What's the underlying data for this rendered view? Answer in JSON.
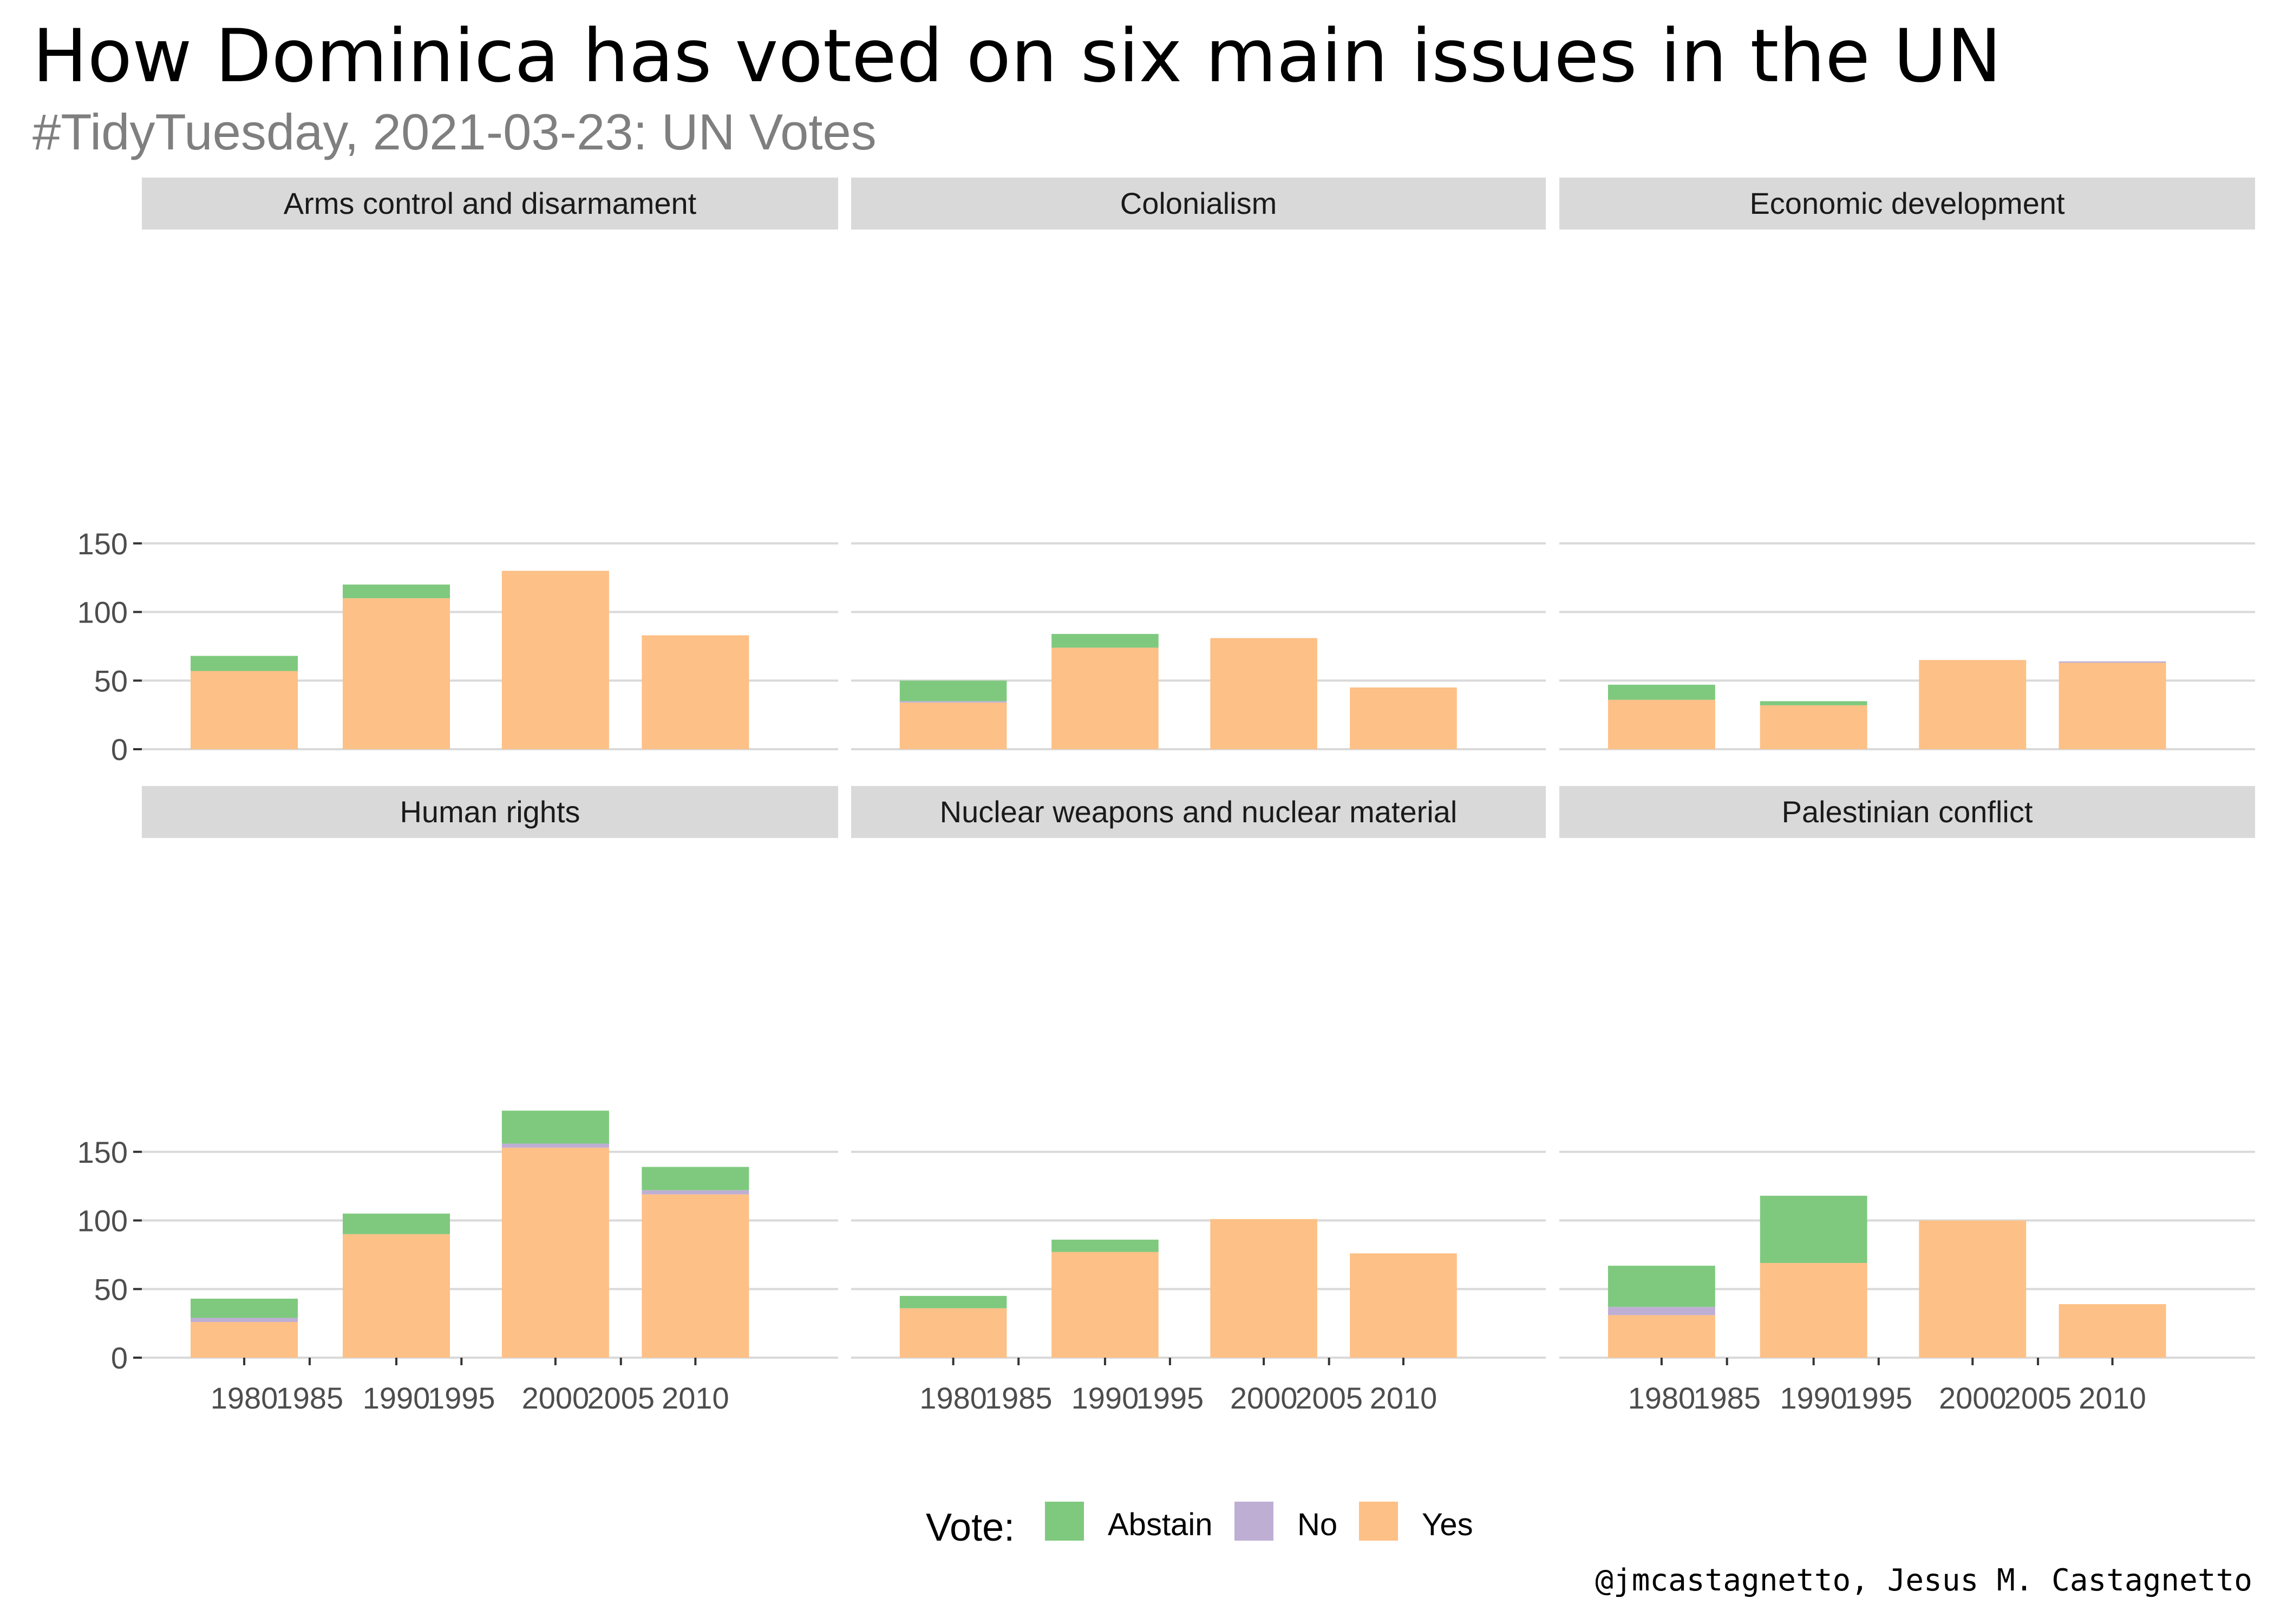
{
  "title": "How Dominica has voted on six main issues in the UN",
  "subtitle": "#TidyTuesday, 2021-03-23: UN Votes",
  "caption": "@jmcastagnetto, Jesus M. Castagnetto",
  "legend": {
    "title": "Vote:",
    "items": [
      {
        "label": "Abstain",
        "color": "#7fc97f"
      },
      {
        "label": "No",
        "color": "#beaed4"
      },
      {
        "label": "Yes",
        "color": "#fdc086"
      }
    ]
  },
  "chart_data": {
    "type": "bar",
    "stacked": true,
    "facets": [
      {
        "name": "Arms control and disarmament",
        "data": {
          "1980": {
            "Yes": 57,
            "No": 0,
            "Abstain": 11
          },
          "1990": {
            "Yes": 110,
            "No": 0,
            "Abstain": 10
          },
          "2000": {
            "Yes": 130,
            "No": 0,
            "Abstain": 0
          },
          "2010": {
            "Yes": 83,
            "No": 0,
            "Abstain": 0
          }
        }
      },
      {
        "name": "Colonialism",
        "data": {
          "1980": {
            "Yes": 34,
            "No": 1,
            "Abstain": 15
          },
          "1990": {
            "Yes": 74,
            "No": 0,
            "Abstain": 10
          },
          "2000": {
            "Yes": 81,
            "No": 0,
            "Abstain": 0
          },
          "2010": {
            "Yes": 45,
            "No": 0,
            "Abstain": 0
          }
        }
      },
      {
        "name": "Economic development",
        "data": {
          "1980": {
            "Yes": 36,
            "No": 0,
            "Abstain": 11
          },
          "1990": {
            "Yes": 32,
            "No": 0,
            "Abstain": 3
          },
          "2000": {
            "Yes": 65,
            "No": 0,
            "Abstain": 0
          },
          "2010": {
            "Yes": 63,
            "No": 1,
            "Abstain": 0
          }
        }
      },
      {
        "name": "Human rights",
        "data": {
          "1980": {
            "Yes": 26,
            "No": 3,
            "Abstain": 14
          },
          "1990": {
            "Yes": 90,
            "No": 0,
            "Abstain": 15
          },
          "2000": {
            "Yes": 153,
            "No": 3,
            "Abstain": 24
          },
          "2010": {
            "Yes": 119,
            "No": 3,
            "Abstain": 17
          }
        }
      },
      {
        "name": "Nuclear weapons and nuclear material",
        "data": {
          "1980": {
            "Yes": 36,
            "No": 0,
            "Abstain": 9
          },
          "1990": {
            "Yes": 77,
            "No": 0,
            "Abstain": 9
          },
          "2000": {
            "Yes": 101,
            "No": 0,
            "Abstain": 0
          },
          "2010": {
            "Yes": 76,
            "No": 0,
            "Abstain": 0
          }
        }
      },
      {
        "name": "Palestinian conflict",
        "data": {
          "1980": {
            "Yes": 31,
            "No": 6,
            "Abstain": 30
          },
          "1990": {
            "Yes": 69,
            "No": 0,
            "Abstain": 49
          },
          "2000": {
            "Yes": 100,
            "No": 0,
            "Abstain": 0
          },
          "2010": {
            "Yes": 39,
            "No": 0,
            "Abstain": 0
          }
        }
      }
    ],
    "categories": [
      "1980",
      "1990",
      "2000",
      "2010"
    ],
    "stack_order": [
      "Yes",
      "No",
      "Abstain"
    ],
    "series_colors": {
      "Abstain": "#7fc97f",
      "No": "#beaed4",
      "Yes": "#fdc086"
    },
    "x_ticks": [
      "1980",
      "1985",
      "1990",
      "1995",
      "2000",
      "2005",
      "2010"
    ],
    "y_ticks": [
      {
        "value": 0,
        "label": "0"
      },
      {
        "value": 50,
        "label": "50"
      },
      {
        "value": 100,
        "label": "100"
      },
      {
        "value": 150,
        "label": "150"
      }
    ],
    "ylim": [
      0,
      190
    ],
    "grid": true,
    "legend_position": "bottom"
  }
}
